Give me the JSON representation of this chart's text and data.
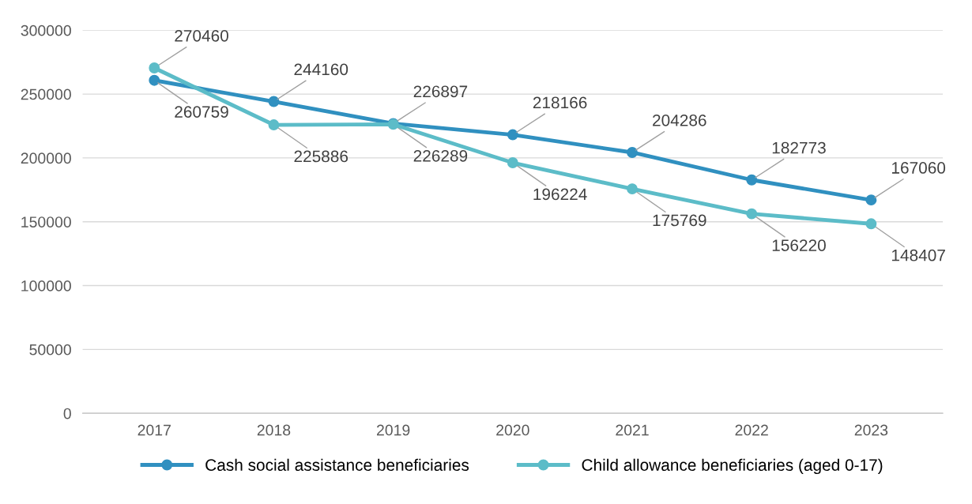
{
  "chart_data": {
    "type": "line",
    "categories": [
      "2017",
      "2018",
      "2019",
      "2020",
      "2021",
      "2022",
      "2023"
    ],
    "series": [
      {
        "name": "Cash social assistance beneficiaries",
        "color": "#3090c0",
        "values": [
          260759,
          244160,
          226897,
          218166,
          204286,
          182773,
          167060
        ]
      },
      {
        "name": "Child allowance beneficiaries (aged 0-17)",
        "color": "#5cbcc8",
        "values": [
          270460,
          225886,
          226289,
          196224,
          175769,
          156220,
          148407
        ]
      }
    ],
    "ylim": [
      0,
      300000
    ],
    "yticks": [
      0,
      50000,
      100000,
      150000,
      200000,
      250000,
      300000
    ],
    "grid": "y",
    "legend": "bottom",
    "marker": "circle",
    "line_style": "solid",
    "data_labels": true
  }
}
